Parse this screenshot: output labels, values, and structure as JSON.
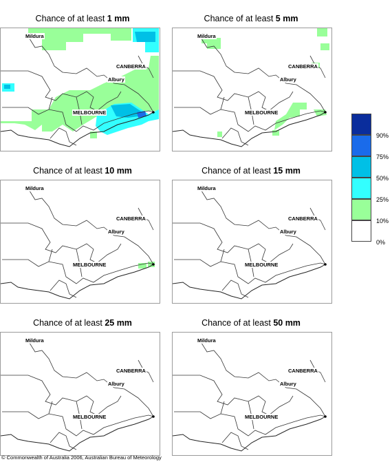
{
  "panels": [
    {
      "title_prefix": "Chance of at least ",
      "threshold": "1 mm"
    },
    {
      "title_prefix": "Chance of at least ",
      "threshold": "5 mm"
    },
    {
      "title_prefix": "Chance of at least ",
      "threshold": "10 mm"
    },
    {
      "title_prefix": "Chance of at least ",
      "threshold": "15 mm"
    },
    {
      "title_prefix": "Chance of at least ",
      "threshold": "25 mm"
    },
    {
      "title_prefix": "Chance of at least ",
      "threshold": "50 mm"
    }
  ],
  "cities": {
    "mildura": "Mildura",
    "canberra": "CANBERRA",
    "albury": "Albury",
    "melbourne": "MELBOURNE"
  },
  "legend": {
    "labels": [
      "90%",
      "75%",
      "50%",
      "25%",
      "10%",
      "0%"
    ],
    "colors": [
      "#0a2d9c",
      "#1a6bea",
      "#00c0e6",
      "#33ffff",
      "#99ff99",
      "#ffffff"
    ]
  },
  "copyright": "© Commonwealth of Australia 2006, Australian Bureau of Meteorology"
}
